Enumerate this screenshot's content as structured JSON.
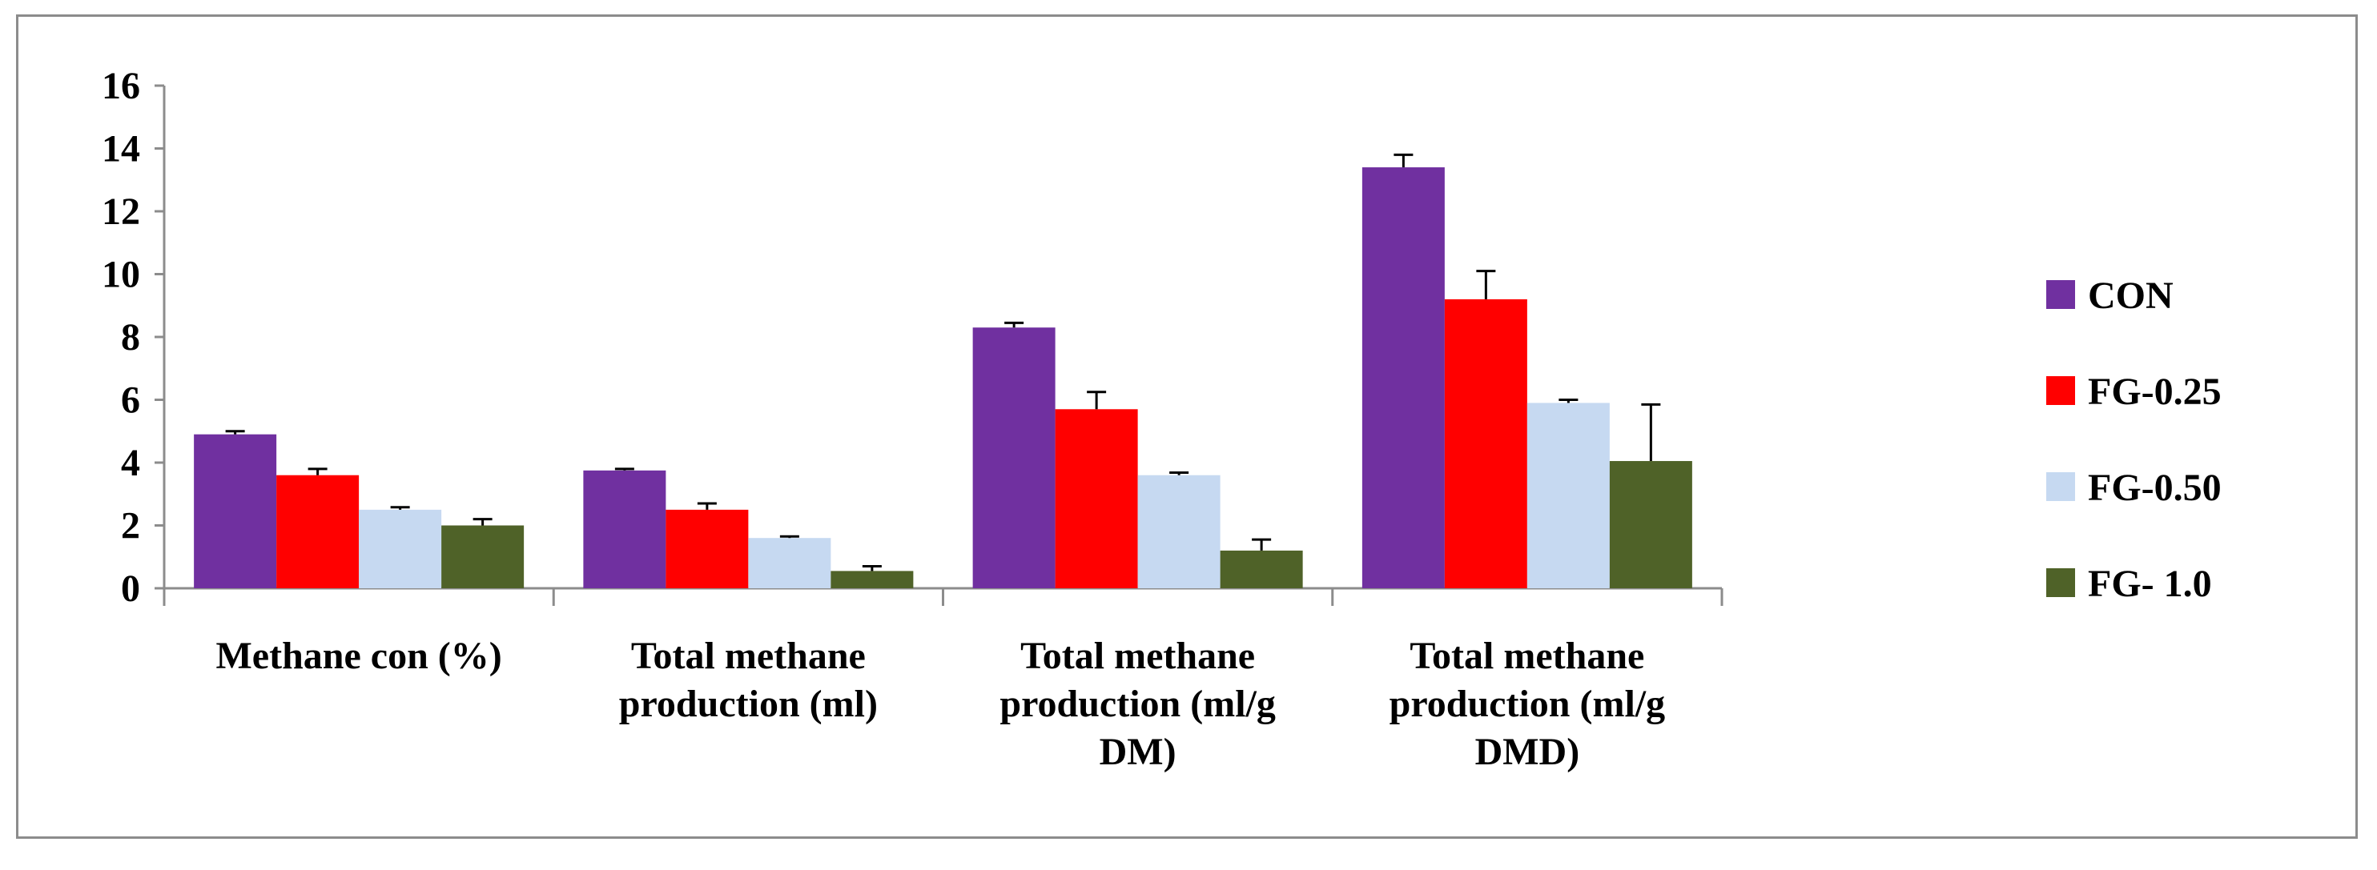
{
  "chart_data": {
    "type": "bar",
    "title": "",
    "xlabel": "",
    "ylabel": "",
    "ylim": [
      0,
      16
    ],
    "yticks": [
      0,
      2,
      4,
      6,
      8,
      10,
      12,
      14,
      16
    ],
    "grid": false,
    "legend_position": "right",
    "categories": [
      [
        "Methane con (%)"
      ],
      [
        "Total methane",
        "production (ml)"
      ],
      [
        "Total methane",
        "production (ml/g",
        "DM)"
      ],
      [
        "Total methane",
        "production (ml/g",
        "DMD)"
      ]
    ],
    "series": [
      {
        "name": "CON",
        "color": "#7030a0",
        "values": [
          4.9,
          3.75,
          8.3,
          13.4
        ],
        "errors": [
          0.1,
          0.05,
          0.15,
          0.4
        ]
      },
      {
        "name": "FG-0.25",
        "color": "#ff0000",
        "values": [
          3.6,
          2.5,
          5.7,
          9.2
        ],
        "errors": [
          0.2,
          0.2,
          0.55,
          0.9
        ]
      },
      {
        "name": "FG-0.50",
        "color": "#c6d9f1",
        "values": [
          2.5,
          1.6,
          3.6,
          5.9
        ],
        "errors": [
          0.08,
          0.05,
          0.08,
          0.1
        ]
      },
      {
        "name": "FG- 1.0",
        "color": "#4f6228",
        "values": [
          2.0,
          0.55,
          1.2,
          4.05
        ],
        "errors": [
          0.2,
          0.15,
          0.35,
          1.8
        ]
      }
    ]
  }
}
